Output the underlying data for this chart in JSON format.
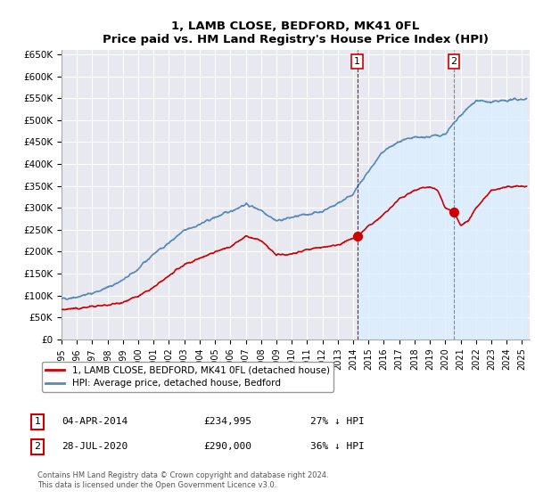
{
  "title": "1, LAMB CLOSE, BEDFORD, MK41 0FL",
  "subtitle": "Price paid vs. HM Land Registry's House Price Index (HPI)",
  "legend_label_red": "1, LAMB CLOSE, BEDFORD, MK41 0FL (detached house)",
  "legend_label_blue": "HPI: Average price, detached house, Bedford",
  "annotation1_date": "04-APR-2014",
  "annotation1_price": "£234,995",
  "annotation1_hpi": "27% ↓ HPI",
  "annotation2_date": "28-JUL-2020",
  "annotation2_price": "£290,000",
  "annotation2_hpi": "36% ↓ HPI",
  "footer": "Contains HM Land Registry data © Crown copyright and database right 2024.\nThis data is licensed under the Open Government Licence v3.0.",
  "ylim": [
    0,
    660000
  ],
  "yticks": [
    0,
    50000,
    100000,
    150000,
    200000,
    250000,
    300000,
    350000,
    400000,
    450000,
    500000,
    550000,
    600000,
    650000
  ],
  "color_red": "#cc0000",
  "color_blue": "#5588bb",
  "color_vline1": "#cc0000",
  "color_vline2": "#888888",
  "color_shade": "#ddeeff",
  "background_plot": "#e8e8f0",
  "background_fig": "#ffffff",
  "grid_color": "#ffffff",
  "point1_x": 2014.27,
  "point1_y": 234995,
  "point2_x": 2020.56,
  "point2_y": 290000,
  "xmin": 1995,
  "xmax": 2025.5
}
